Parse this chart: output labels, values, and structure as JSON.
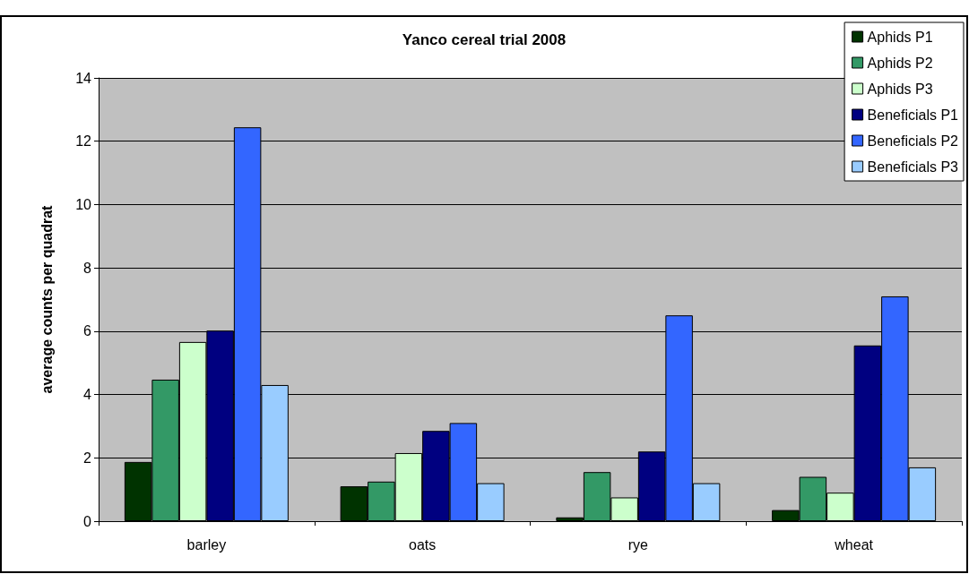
{
  "chart_data": {
    "type": "bar",
    "title": "Yanco cereal trial 2008",
    "ylabel": "average counts per quadrat",
    "categories": [
      "barley",
      "oats",
      "rye",
      "wheat"
    ],
    "series": [
      {
        "name": "Aphids P1",
        "color": "#003300",
        "values": [
          1.87,
          1.1,
          0.12,
          0.35
        ]
      },
      {
        "name": "Aphids P2",
        "color": "#339966",
        "values": [
          4.47,
          1.25,
          1.55,
          1.4
        ]
      },
      {
        "name": "Aphids P3",
        "color": "#ccffcc",
        "values": [
          5.66,
          2.15,
          0.75,
          0.9
        ]
      },
      {
        "name": "Beneficials P1",
        "color": "#000080",
        "values": [
          6.02,
          2.85,
          2.2,
          5.55
        ]
      },
      {
        "name": "Beneficials P2",
        "color": "#3366ff",
        "values": [
          12.44,
          3.1,
          6.5,
          7.1
        ]
      },
      {
        "name": "Beneficials P3",
        "color": "#99ccff",
        "values": [
          4.3,
          1.2,
          1.2,
          1.7
        ]
      }
    ],
    "ylim": [
      0,
      14
    ],
    "yticks": [
      0,
      2,
      4,
      6,
      8,
      10,
      12,
      14
    ],
    "grid": "y",
    "legend": "top right"
  }
}
